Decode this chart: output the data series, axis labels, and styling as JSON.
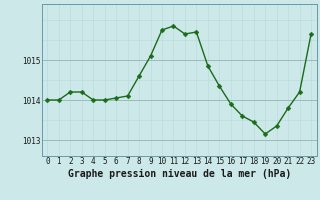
{
  "hours": [
    0,
    1,
    2,
    3,
    4,
    5,
    6,
    7,
    8,
    9,
    10,
    11,
    12,
    13,
    14,
    15,
    16,
    17,
    18,
    19,
    20,
    21,
    22,
    23
  ],
  "pressure": [
    1014.0,
    1014.0,
    1014.2,
    1014.2,
    1014.0,
    1014.0,
    1014.05,
    1014.1,
    1014.6,
    1015.1,
    1015.75,
    1015.85,
    1015.65,
    1015.7,
    1014.85,
    1014.35,
    1013.9,
    1013.6,
    1013.45,
    1013.15,
    1013.35,
    1013.8,
    1014.2,
    1015.65
  ],
  "line_color": "#1a6b1a",
  "marker_color": "#1a6b1a",
  "bg_color": "#cce8e8",
  "grid_color_major": "#99bbbb",
  "grid_color_minor": "#bbdddd",
  "xlabel": "Graphe pression niveau de la mer (hPa)",
  "xlabel_fontsize": 7,
  "ylabel_ticks": [
    1013,
    1014,
    1015
  ],
  "ylim": [
    1012.6,
    1016.4
  ],
  "xlim": [
    -0.5,
    23.5
  ],
  "xtick_labels": [
    "0",
    "1",
    "2",
    "3",
    "4",
    "5",
    "6",
    "7",
    "8",
    "9",
    "10",
    "11",
    "12",
    "13",
    "14",
    "15",
    "16",
    "17",
    "18",
    "19",
    "20",
    "21",
    "22",
    "23"
  ],
  "tick_fontsize": 5.5,
  "marker_size": 2.5,
  "line_width": 1.0
}
